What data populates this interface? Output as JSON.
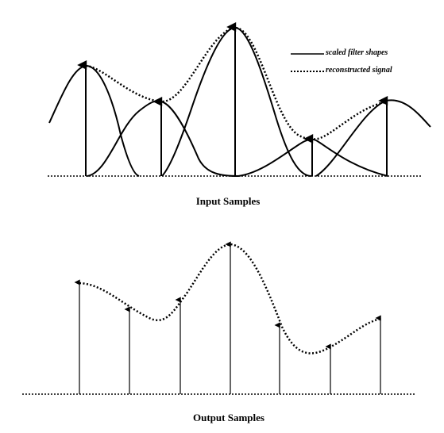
{
  "legend": {
    "solid_label": "scaled filter shapes",
    "dotted_label": "reconstructed signal"
  },
  "captions": {
    "top": "Input Samples",
    "bottom": "Output Samples"
  },
  "top_panel": {
    "sample_count": 5,
    "relative_amplitudes": [
      0.74,
      0.49,
      1.0,
      0.25,
      0.51
    ]
  },
  "bottom_panel": {
    "sample_count": 7,
    "relative_amplitudes": [
      0.74,
      0.57,
      0.63,
      1.0,
      0.45,
      0.31,
      0.52
    ]
  },
  "colors": {
    "ink": "#000000",
    "background": "#ffffff"
  }
}
